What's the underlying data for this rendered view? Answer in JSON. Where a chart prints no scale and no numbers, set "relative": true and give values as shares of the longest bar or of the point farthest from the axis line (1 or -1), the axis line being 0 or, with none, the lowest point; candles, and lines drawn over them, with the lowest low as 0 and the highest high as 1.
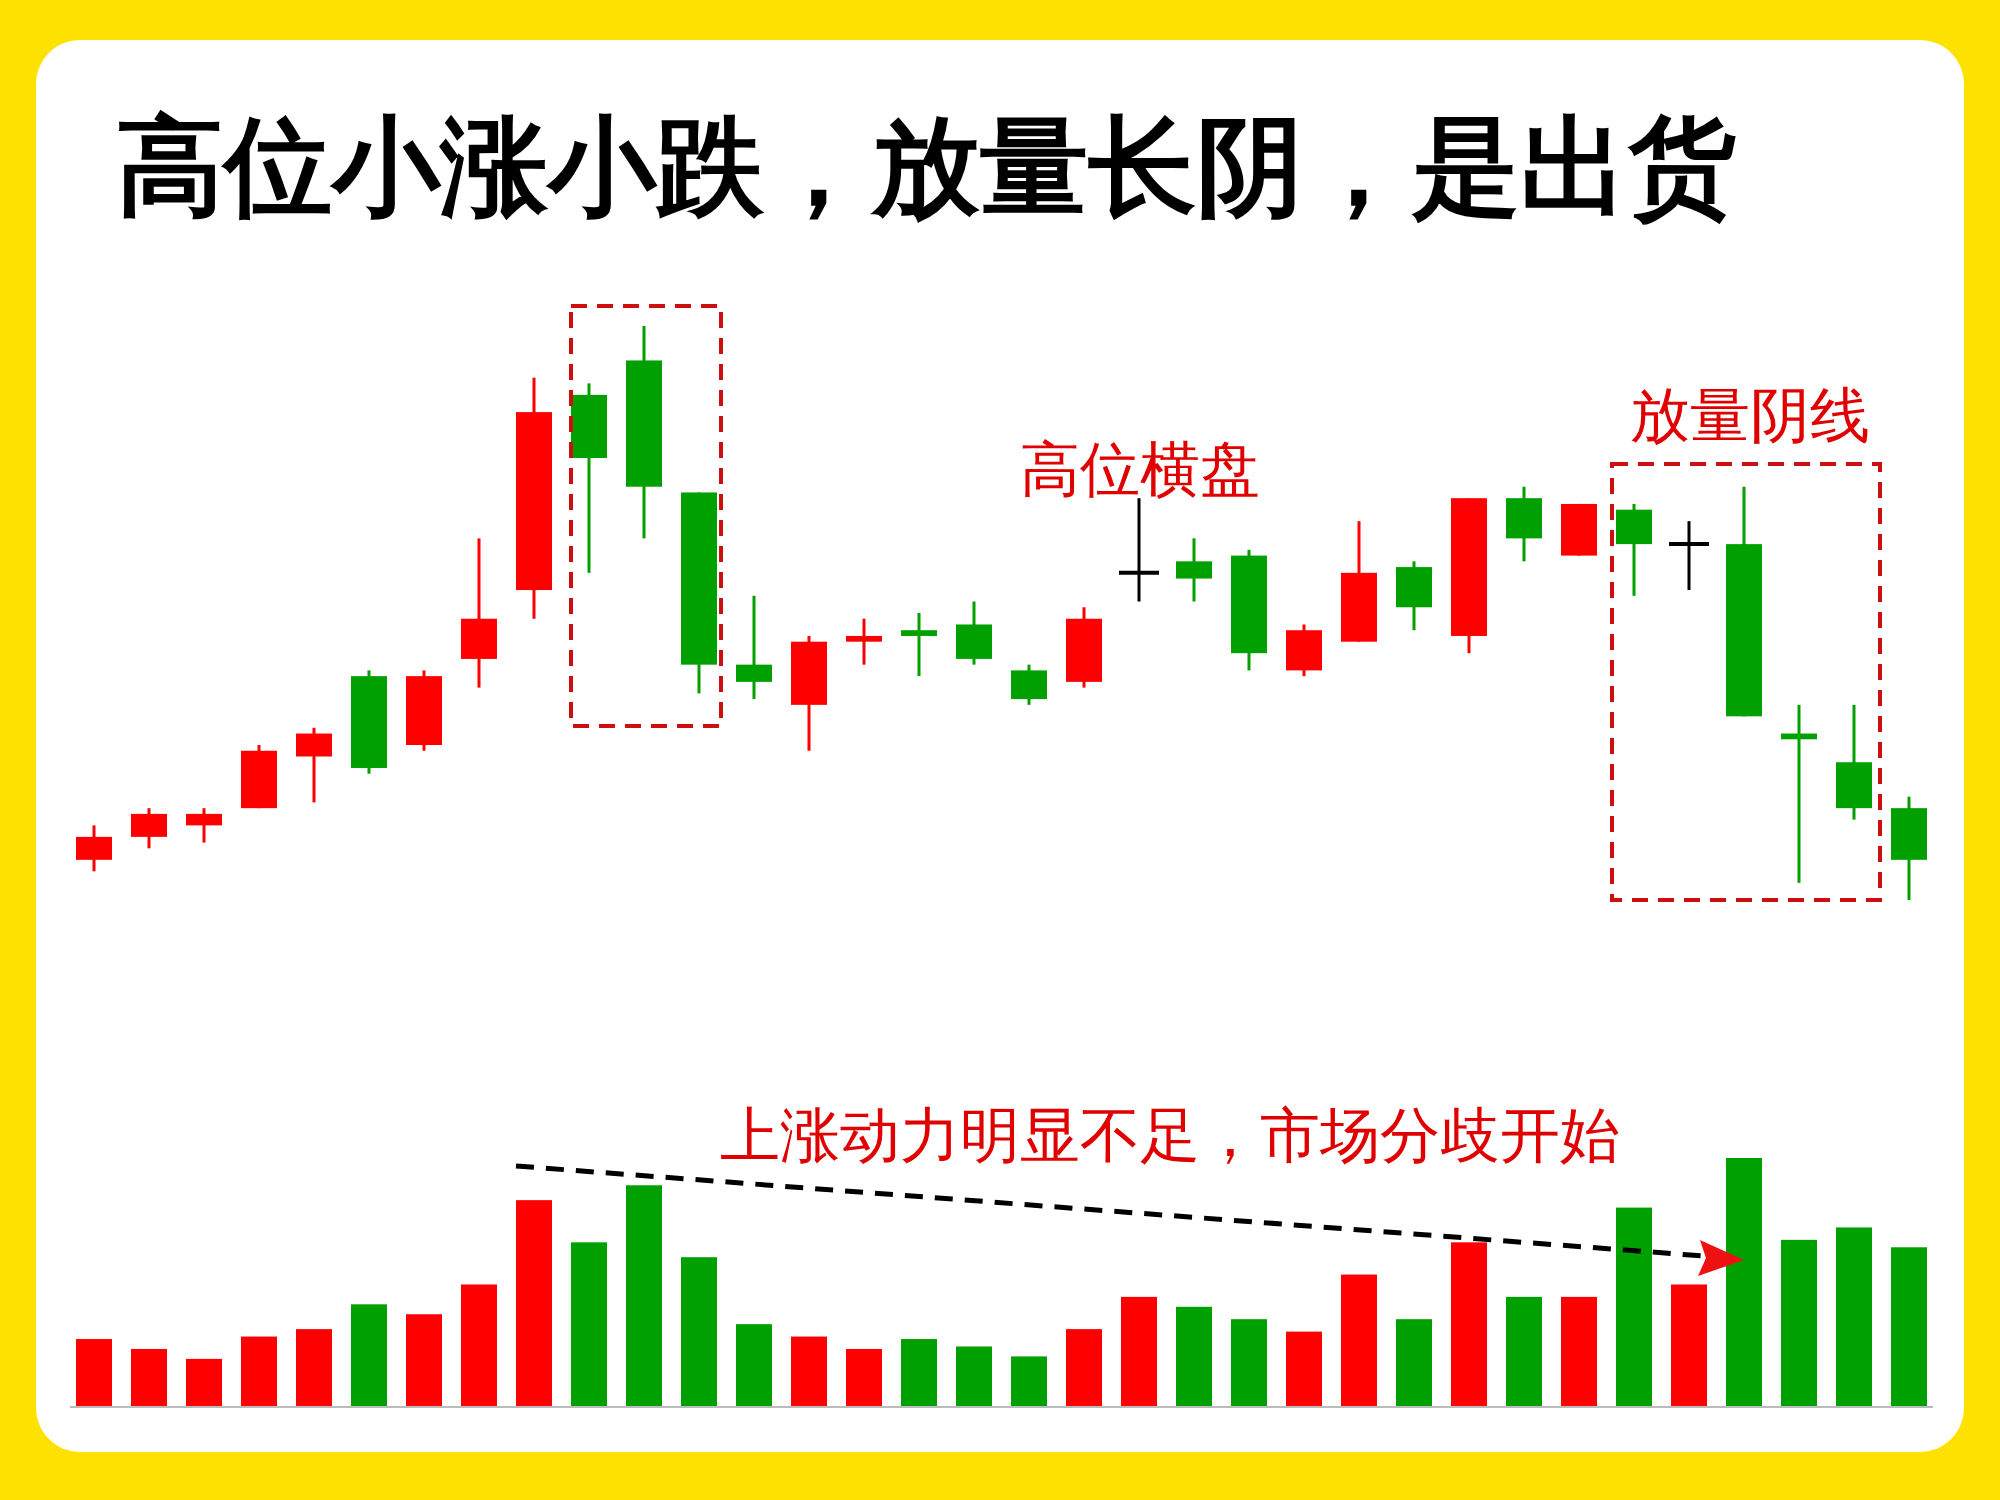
{
  "chart_data": [
    {
      "type": "candlestick",
      "title": "高位小涨小跌，放量长阴，是出货",
      "relative": true,
      "categories": [
        null,
        null,
        null,
        null,
        null,
        null,
        null,
        null,
        null,
        null,
        null,
        null,
        null,
        null,
        null,
        null,
        null,
        null,
        null,
        null,
        null,
        null,
        null,
        null,
        null,
        null,
        null,
        null,
        null,
        null,
        null,
        null,
        null,
        null
      ],
      "ohlc": [
        [
          0.07,
          0.13,
          0.05,
          0.11
        ],
        [
          0.11,
          0.16,
          0.09,
          0.15
        ],
        [
          0.13,
          0.16,
          0.1,
          0.15
        ],
        [
          0.16,
          0.27,
          0.16,
          0.26
        ],
        [
          0.25,
          0.3,
          0.17,
          0.29
        ],
        [
          0.39,
          0.4,
          0.22,
          0.23
        ],
        [
          0.27,
          0.4,
          0.26,
          0.39
        ],
        [
          0.42,
          0.63,
          0.37,
          0.49
        ],
        [
          0.54,
          0.91,
          0.49,
          0.85
        ],
        [
          0.88,
          0.9,
          0.57,
          0.77
        ],
        [
          0.94,
          1.0,
          0.63,
          0.72
        ],
        [
          0.71,
          0.71,
          0.36,
          0.41
        ],
        [
          0.41,
          0.53,
          0.35,
          0.38
        ],
        [
          0.34,
          0.46,
          0.26,
          0.45
        ],
        [
          0.45,
          0.49,
          0.41,
          0.46
        ],
        [
          0.47,
          0.5,
          0.39,
          0.46
        ],
        [
          0.48,
          0.52,
          0.41,
          0.42
        ],
        [
          0.4,
          0.41,
          0.34,
          0.35
        ],
        [
          0.38,
          0.51,
          0.37,
          0.49
        ],
        [
          0.57,
          0.7,
          0.52,
          0.57
        ],
        [
          0.59,
          0.63,
          0.52,
          0.56
        ],
        [
          0.6,
          0.61,
          0.4,
          0.43
        ],
        [
          0.4,
          0.48,
          0.39,
          0.47
        ],
        [
          0.45,
          0.66,
          0.45,
          0.57
        ],
        [
          0.58,
          0.59,
          0.47,
          0.51
        ],
        [
          0.46,
          0.7,
          0.43,
          0.7
        ],
        [
          0.7,
          0.72,
          0.59,
          0.63
        ],
        [
          0.6,
          0.69,
          0.6,
          0.69
        ],
        [
          0.68,
          0.69,
          0.53,
          0.62
        ],
        [
          0.62,
          0.66,
          0.54,
          0.62
        ],
        [
          0.62,
          0.72,
          0.32,
          0.32
        ],
        [
          0.29,
          0.34,
          0.03,
          0.28
        ],
        [
          0.24,
          0.34,
          0.14,
          0.16
        ],
        [
          0.16,
          0.18,
          0.0,
          0.07
        ]
      ],
      "colors": [
        "#ff0000",
        "#ff0000",
        "#ff0000",
        "#ff0000",
        "#ff0000",
        "#00a000",
        "#ff0000",
        "#ff0000",
        "#ff0000",
        "#00a000",
        "#00a000",
        "#00a000",
        "#00a000",
        "#ff0000",
        "#ff0000",
        "#00a000",
        "#00a000",
        "#00a000",
        "#ff0000",
        "#000000",
        "#00a000",
        "#00a000",
        "#ff0000",
        "#ff0000",
        "#00a000",
        "#ff0000",
        "#00a000",
        "#ff0000",
        "#00a000",
        "#000000",
        "#00a000",
        "#00a000",
        "#00a000",
        "#00a000"
      ],
      "annotations": [
        "高位横盘",
        "放量阴线"
      ]
    },
    {
      "type": "bar",
      "relative": true,
      "categories": [
        null,
        null,
        null,
        null,
        null,
        null,
        null,
        null,
        null,
        null,
        null,
        null,
        null,
        null,
        null,
        null,
        null,
        null,
        null,
        null,
        null,
        null,
        null,
        null,
        null,
        null,
        null,
        null,
        null,
        null,
        null,
        null,
        null,
        null
      ],
      "values": [
        0.27,
        0.23,
        0.19,
        0.28,
        0.31,
        0.41,
        0.37,
        0.49,
        0.83,
        0.66,
        0.89,
        0.6,
        0.33,
        0.28,
        0.23,
        0.27,
        0.24,
        0.2,
        0.31,
        0.44,
        0.4,
        0.35,
        0.3,
        0.53,
        0.35,
        0.66,
        0.44,
        0.44,
        0.8,
        0.49,
        1.0,
        0.67,
        0.72,
        0.64
      ],
      "colors": [
        "#ff0000",
        "#ff0000",
        "#ff0000",
        "#ff0000",
        "#ff0000",
        "#00a000",
        "#ff0000",
        "#ff0000",
        "#ff0000",
        "#00a000",
        "#00a000",
        "#00a000",
        "#00a000",
        "#ff0000",
        "#ff0000",
        "#00a000",
        "#00a000",
        "#00a000",
        "#ff0000",
        "#ff0000",
        "#00a000",
        "#00a000",
        "#ff0000",
        "#ff0000",
        "#00a000",
        "#ff0000",
        "#00a000",
        "#ff0000",
        "#00a000",
        "#ff0000",
        "#00a000",
        "#00a000",
        "#00a000",
        "#00a000"
      ],
      "annotations": [
        "上涨动力明显不足，市场分歧开始"
      ]
    }
  ]
}
